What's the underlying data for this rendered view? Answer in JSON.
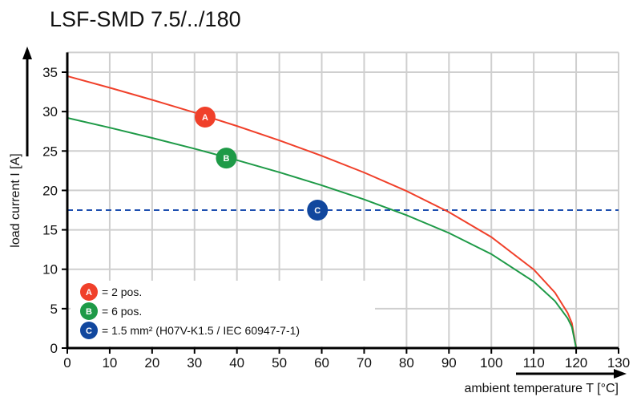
{
  "chart_data": {
    "type": "line",
    "title": "LSF-SMD 7.5/../180",
    "xlabel": "ambient temperature T [°C]",
    "ylabel": "load current I [A]",
    "xlim": [
      0,
      130
    ],
    "ylim": [
      0,
      37.5
    ],
    "xticks": [
      0,
      10,
      20,
      30,
      40,
      50,
      60,
      70,
      80,
      90,
      100,
      110,
      120,
      130
    ],
    "yticks": [
      0,
      5,
      10,
      15,
      20,
      25,
      30,
      35
    ],
    "grid": true,
    "series": [
      {
        "name": "A",
        "color": "#f0402a",
        "x": [
          0,
          10,
          20,
          30,
          40,
          50,
          60,
          70,
          80,
          90,
          100,
          110,
          115,
          118,
          119,
          120
        ],
        "y": [
          34.5,
          33.03,
          31.49,
          29.88,
          28.17,
          26.35,
          24.39,
          22.27,
          19.92,
          17.25,
          14.08,
          9.96,
          7.04,
          4.45,
          3.15,
          0
        ]
      },
      {
        "name": "B",
        "color": "#1e9a47",
        "x": [
          0,
          10,
          20,
          30,
          40,
          50,
          60,
          70,
          80,
          90,
          100,
          110,
          115,
          118,
          119,
          120
        ],
        "y": [
          29.2,
          27.96,
          26.66,
          25.29,
          23.84,
          22.3,
          20.65,
          18.85,
          16.86,
          14.6,
          11.92,
          8.43,
          5.96,
          3.77,
          2.67,
          0
        ]
      }
    ],
    "reference_line": {
      "name": "C",
      "y": 17.5,
      "color": "#1d4fb0",
      "style": "dashed"
    },
    "markers": [
      {
        "label": "A",
        "x": 32.5,
        "y": 29.3,
        "color": "#f0402a"
      },
      {
        "label": "B",
        "x": 37.5,
        "y": 24.1,
        "color": "#1e9a47"
      },
      {
        "label": "C",
        "x": 59,
        "y": 17.5,
        "color": "#11479e"
      }
    ],
    "legend": {
      "placement": "bottom-left",
      "entries": [
        {
          "label": "A",
          "text": "= 2 pos.",
          "color": "#f0402a"
        },
        {
          "label": "B",
          "text": "= 6 pos.",
          "color": "#1e9a47"
        },
        {
          "label": "C",
          "text": "= 1.5 mm² (H07V-K1.5 / IEC 60947-7-1)",
          "color": "#11479e"
        }
      ]
    }
  }
}
